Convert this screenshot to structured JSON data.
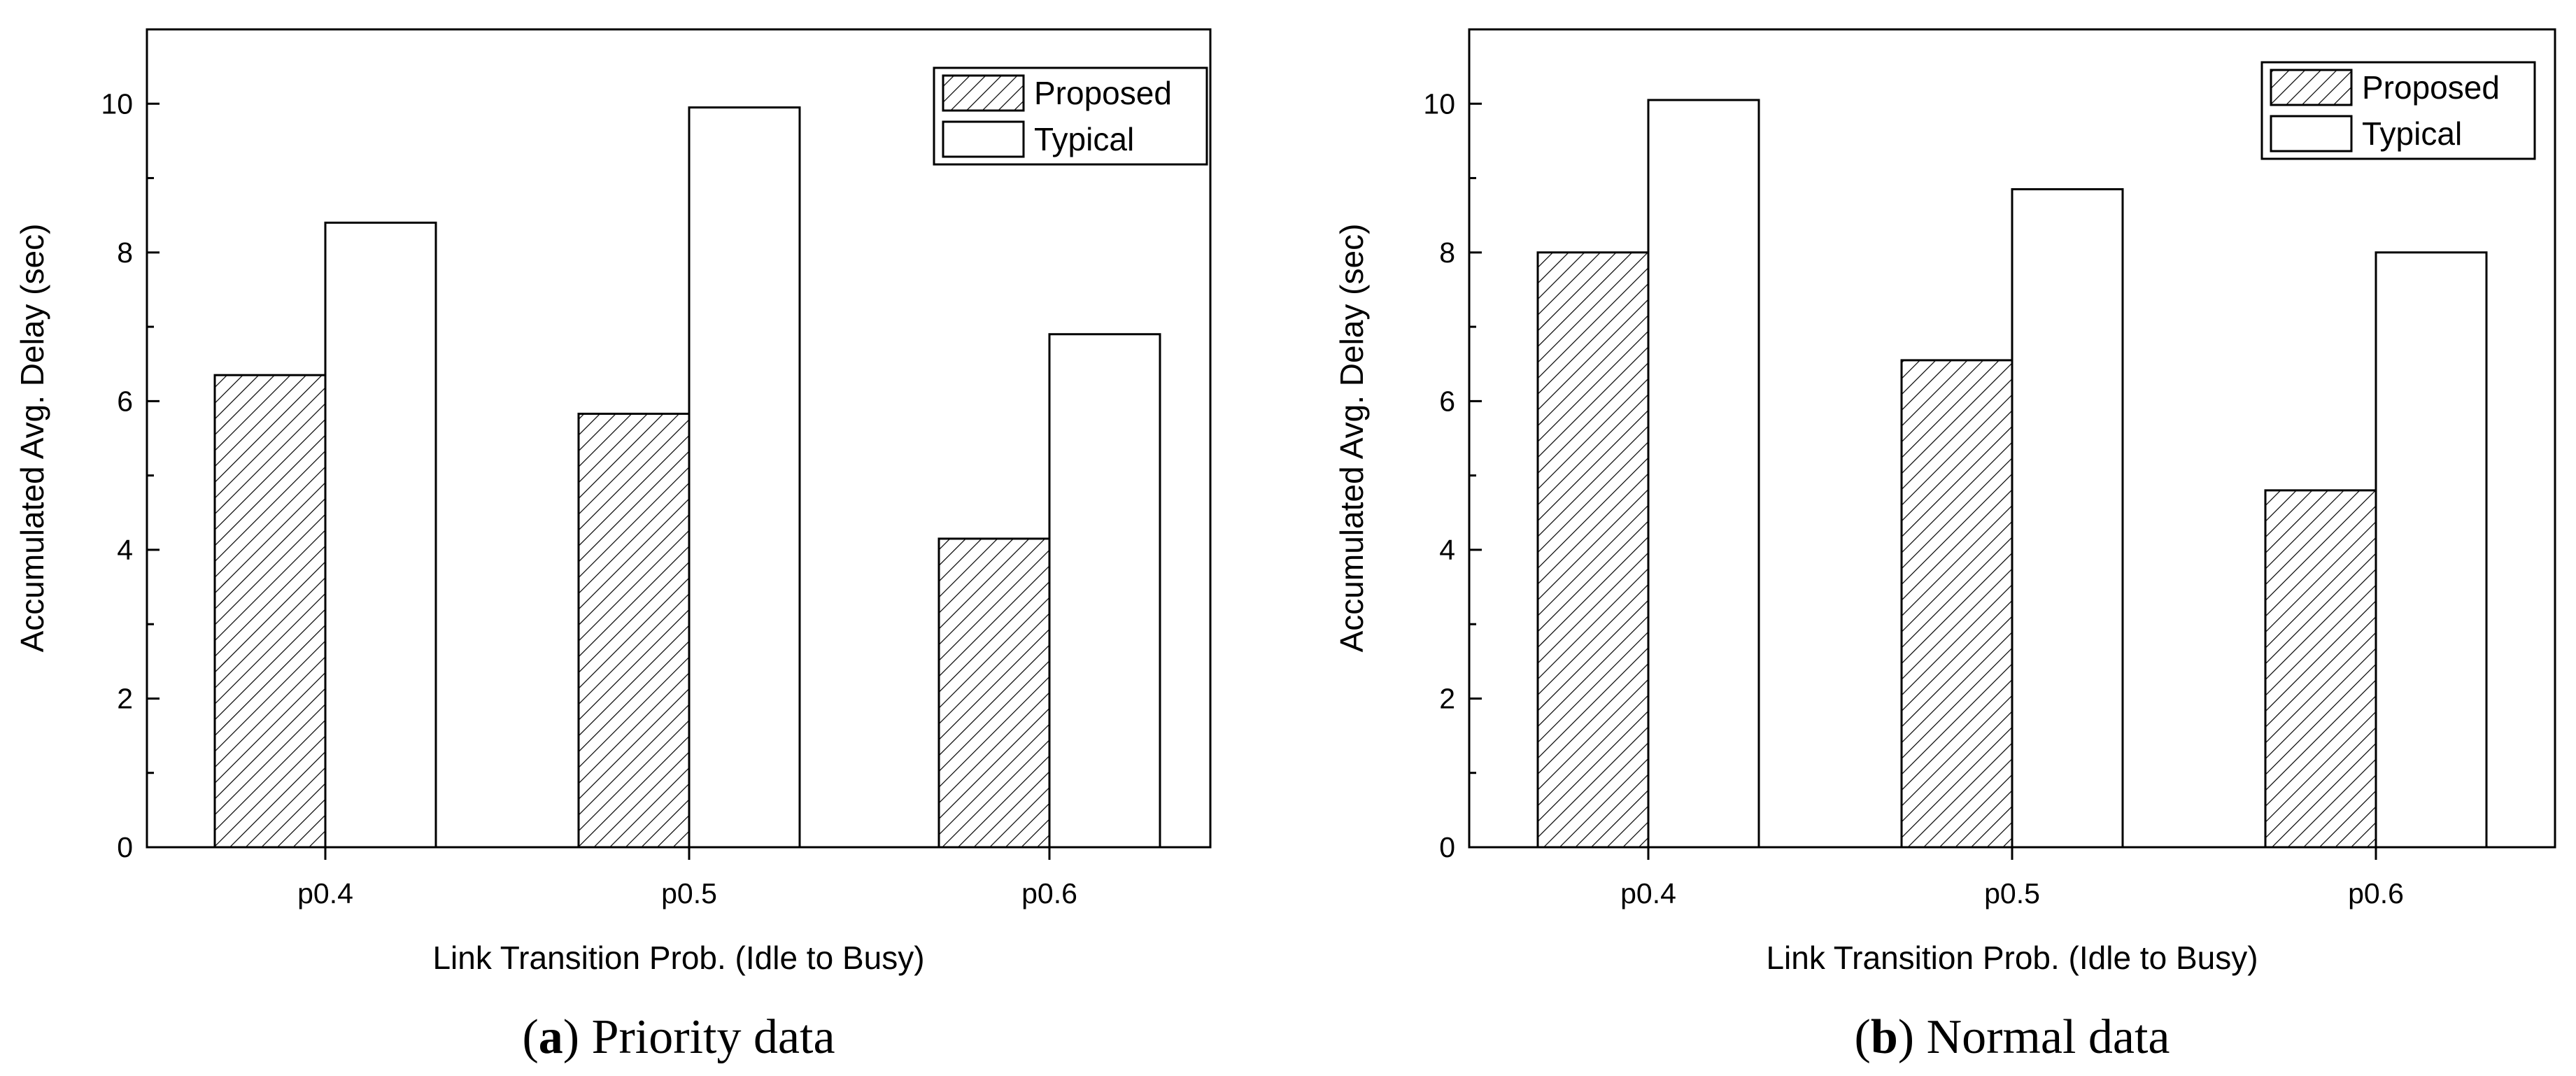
{
  "chart_data": [
    {
      "type": "bar",
      "categories": [
        "p0.4",
        "p0.5",
        "p0.6"
      ],
      "series": [
        {
          "name": "Proposed",
          "values": [
            6.35,
            5.83,
            4.15
          ]
        },
        {
          "name": "Typical",
          "values": [
            8.4,
            9.95,
            6.9
          ]
        }
      ],
      "xlabel": "Link Transition Prob. (Idle to Busy)",
      "ylabel": "Accumulated Avg. Delay (sec)",
      "ylim": [
        0,
        11
      ],
      "yticks": [
        0,
        2,
        4,
        6,
        8,
        10
      ],
      "legend_position": "top-right",
      "grid": false,
      "caption": {
        "letter": "a",
        "text": " Priority data"
      }
    },
    {
      "type": "bar",
      "categories": [
        "p0.4",
        "p0.5",
        "p0.6"
      ],
      "series": [
        {
          "name": "Proposed",
          "values": [
            8.0,
            6.55,
            4.8
          ]
        },
        {
          "name": "Typical",
          "values": [
            10.05,
            8.85,
            8.0
          ]
        }
      ],
      "xlabel": "Link Transition Prob. (Idle to Busy)",
      "ylabel": "Accumulated Avg. Delay (sec)",
      "ylim": [
        0,
        11
      ],
      "yticks": [
        0,
        2,
        4,
        6,
        8,
        10
      ],
      "legend_position": "top-right",
      "grid": false,
      "caption": {
        "letter": "b",
        "text": " Normal data"
      }
    }
  ],
  "styles": {
    "bar_stroke": "#000000",
    "typical_fill": "#ffffff",
    "proposed_hatch": "#000000"
  }
}
